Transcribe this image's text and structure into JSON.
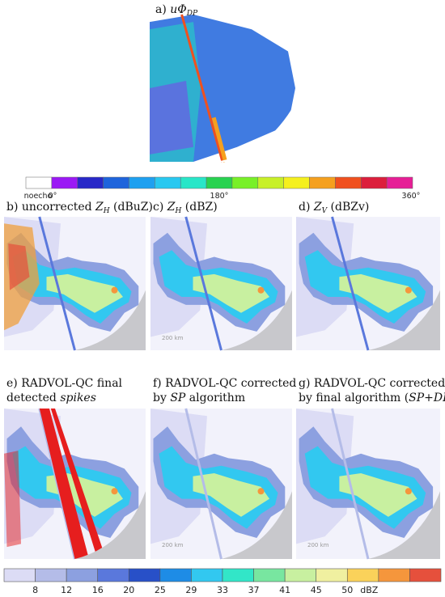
{
  "panels": [
    {
      "lines": [
        [
          {
            "text": "a) "
          },
          {
            "text": "uΦ",
            "style": "italic"
          },
          {
            "text": "DP",
            "style": "sub"
          }
        ]
      ],
      "variant": "phase"
    },
    {
      "lines": [
        [
          {
            "text": "b) uncorrected "
          },
          {
            "text": "Z",
            "style": "italic"
          },
          {
            "text": "H",
            "style": "sub"
          },
          {
            "text": " (dBuZ)"
          }
        ]
      ],
      "variant": "raw"
    },
    {
      "lines": [
        [
          {
            "text": "c) "
          },
          {
            "text": "Z",
            "style": "italic"
          },
          {
            "text": "H",
            "style": "sub"
          },
          {
            "text": " (dBZ)"
          }
        ]
      ],
      "variant": "clean",
      "scale_label": "200 km"
    },
    {
      "lines": [
        [
          {
            "text": "d) "
          },
          {
            "text": "Z",
            "style": "italic"
          },
          {
            "text": "V",
            "style": "sub"
          },
          {
            "text": " (dBZv)"
          }
        ]
      ],
      "variant": "clean"
    },
    {
      "lines": [
        [
          {
            "text": "e) RADVOL-QC final"
          }
        ],
        [
          {
            "text": "detected "
          },
          {
            "text": "spikes",
            "style": "italic"
          }
        ]
      ],
      "variant": "spikes"
    },
    {
      "lines": [
        [
          {
            "text": "f) RADVOL-QC corrected"
          }
        ],
        [
          {
            "text": "by "
          },
          {
            "text": "SP",
            "style": "italic"
          },
          {
            "text": " algorithm"
          }
        ]
      ],
      "variant": "corrected",
      "scale_label": "200 km"
    },
    {
      "lines": [
        [
          {
            "text": "g) RADVOL-QC corrected"
          }
        ],
        [
          {
            "text": "by final algorithm ("
          },
          {
            "text": "SP+DP",
            "style": "italic"
          },
          {
            "text": ")"
          }
        ]
      ],
      "variant": "corrected",
      "scale_label": "200 km"
    }
  ],
  "phase_colorbar": {
    "colors": [
      "#ffffff",
      "#9b19f5",
      "#2828c8",
      "#1e64dc",
      "#1ea0f0",
      "#28c8f0",
      "#28e6c8",
      "#28d250",
      "#78f028",
      "#c8f028",
      "#f5f01e",
      "#f5a01e",
      "#f0501e",
      "#dc1e3c",
      "#e61e96"
    ],
    "labels": [
      "noecho",
      "0°",
      "180°",
      "360°"
    ]
  },
  "reflectivity_colorbar": {
    "colors": [
      "#dcdcf5",
      "#b4bce8",
      "#8ca0e0",
      "#5a78dc",
      "#2850c8",
      "#1e8ce6",
      "#32c8f0",
      "#32e6c8",
      "#78e6a0",
      "#c8f0a0",
      "#f0f0a0",
      "#fad25a",
      "#f5963c",
      "#e6503c"
    ],
    "ticks": [
      8,
      12,
      16,
      20,
      25,
      29,
      33,
      37,
      41,
      45,
      50
    ],
    "unit": "dBZ"
  }
}
